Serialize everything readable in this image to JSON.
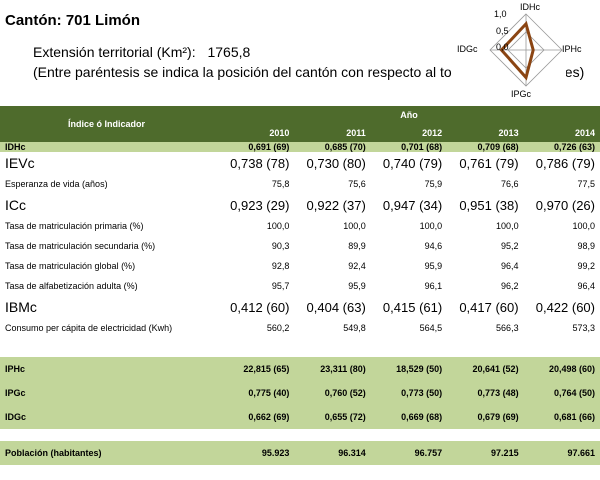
{
  "title": "Cantón: 701 Limón",
  "extension": {
    "label": "Extensión territorial (Km²):",
    "value": "1765,8"
  },
  "note": "(Entre paréntesis se indica la posición del cantón con respecto al to",
  "note_end": "nes)",
  "radar": {
    "axes": [
      "IDHc",
      "IPHc",
      "IPGc",
      "IDGc"
    ],
    "ticks": [
      "1,0",
      "0,5",
      "0,0"
    ],
    "values": [
      0.726,
      0.2,
      0.764,
      0.681
    ],
    "line_color": "#8b4513"
  },
  "colors": {
    "header_bg": "#4e6b2c",
    "green_row": "#c2d69a"
  },
  "table": {
    "header_label": "Índice ó Indicador",
    "year_label": "Año",
    "years": [
      "2010",
      "2011",
      "2012",
      "2013",
      "2014"
    ],
    "rows": [
      {
        "style": "green",
        "label": "IDHc",
        "values": [
          "0,691 (69)",
          "0,685 (70)",
          "0,701 (68)",
          "0,709 (68)",
          "0,726 (63)"
        ]
      },
      {
        "style": "big",
        "label": "IEVc",
        "values": [
          "0,738 (78)",
          "0,730 (80)",
          "0,740 (79)",
          "0,761 (79)",
          "0,786 (79)"
        ]
      },
      {
        "style": "sm",
        "label": "Esperanza de vida (años)",
        "values": [
          "75,8",
          "75,6",
          "75,9",
          "76,6",
          "77,5"
        ]
      },
      {
        "style": "big",
        "label": "ICc",
        "values": [
          "0,923 (29)",
          "0,922 (37)",
          "0,947 (34)",
          "0,951 (38)",
          "0,970 (26)"
        ]
      },
      {
        "style": "sm",
        "label": "Tasa de matriculación primaria (%)",
        "values": [
          "100,0",
          "100,0",
          "100,0",
          "100,0",
          "100,0"
        ]
      },
      {
        "style": "sm",
        "label": "Tasa de matriculación secundaria (%)",
        "values": [
          "90,3",
          "89,9",
          "94,6",
          "95,2",
          "98,9"
        ]
      },
      {
        "style": "sm",
        "label": "Tasa de matriculación global (%)",
        "values": [
          "92,8",
          "92,4",
          "95,9",
          "96,4",
          "99,2"
        ]
      },
      {
        "style": "sm",
        "label": "Tasa de alfabetización adulta (%)",
        "values": [
          "95,7",
          "95,9",
          "96,1",
          "96,2",
          "96,4"
        ]
      },
      {
        "style": "big",
        "label": "IBMc",
        "values": [
          "0,412 (60)",
          "0,404 (63)",
          "0,415 (61)",
          "0,417 (60)",
          "0,422 (60)"
        ]
      },
      {
        "style": "sm",
        "label": "Consumo per cápita de electricidad (Kwh)",
        "values": [
          "560,2",
          "549,8",
          "564,5",
          "566,3",
          "573,3"
        ]
      }
    ],
    "index_rows": [
      {
        "label": "IPHc",
        "values": [
          "22,815 (65)",
          "23,311 (80)",
          "18,529 (50)",
          "20,641 (52)",
          "20,498 (60)"
        ]
      },
      {
        "label": "IPGc",
        "values": [
          "0,775 (40)",
          "0,760 (52)",
          "0,773 (50)",
          "0,773 (48)",
          "0,764 (50)"
        ]
      },
      {
        "label": "IDGc",
        "values": [
          "0,662 (69)",
          "0,655 (72)",
          "0,669 (68)",
          "0,679 (69)",
          "0,681 (66)"
        ]
      }
    ],
    "population": {
      "label": "Población (habitantes)",
      "values": [
        "95.923",
        "96.314",
        "96.757",
        "97.215",
        "97.661"
      ]
    }
  }
}
